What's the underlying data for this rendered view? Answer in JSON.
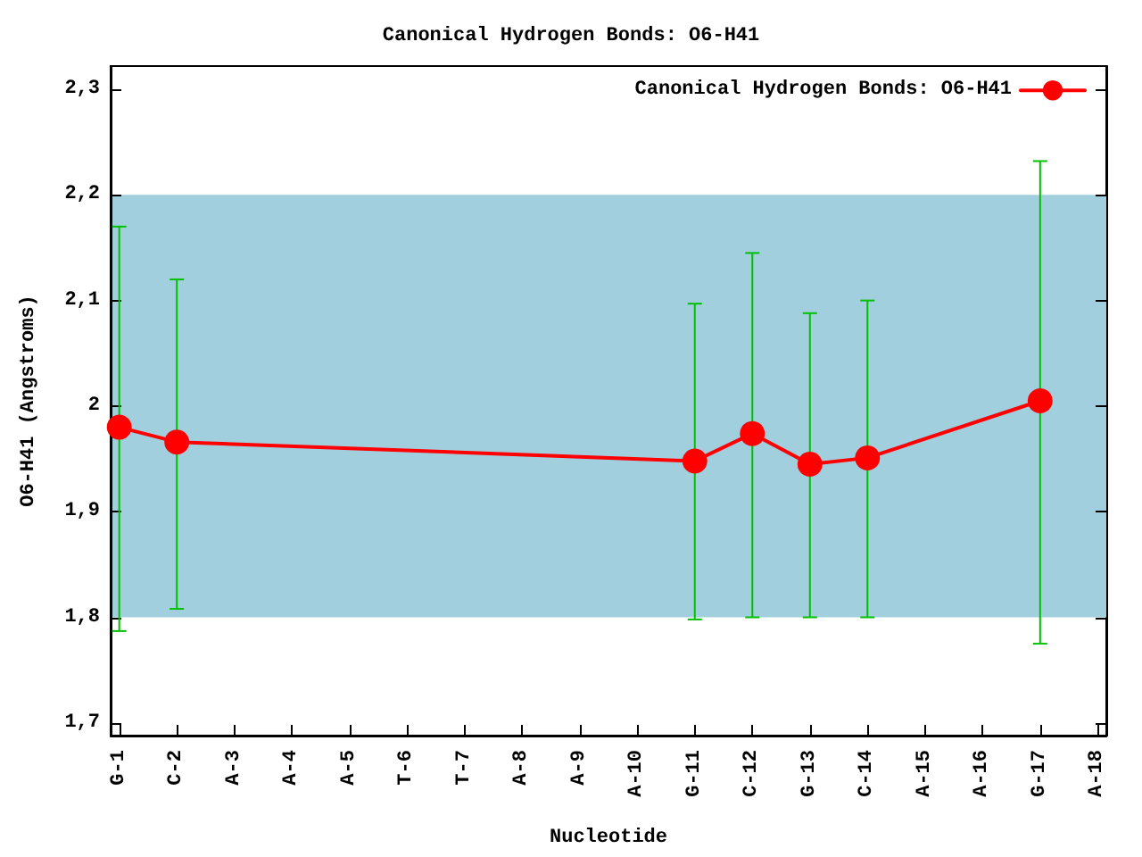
{
  "chart_data": {
    "type": "line",
    "title": "Canonical Hydrogen Bonds: O6-H41",
    "xlabel": "Nucleotide",
    "ylabel": "O6-H41 (Angstroms)",
    "categories": [
      "G-1",
      "C-2",
      "A-3",
      "A-4",
      "A-5",
      "T-6",
      "T-7",
      "A-8",
      "A-9",
      "A-10",
      "G-11",
      "C-12",
      "G-13",
      "C-14",
      "A-15",
      "A-16",
      "G-17",
      "A-18"
    ],
    "series": [
      {
        "name": "Canonical Hydrogen Bonds: O6-H41",
        "color": "#ff0000",
        "values": [
          1.98,
          1.966,
          null,
          null,
          null,
          null,
          null,
          null,
          null,
          null,
          1.948,
          1.974,
          1.945,
          1.951,
          null,
          null,
          2.005,
          null
        ],
        "errors": [
          [
            1.787,
            2.17
          ],
          [
            1.808,
            2.12
          ],
          null,
          null,
          null,
          null,
          null,
          null,
          null,
          null,
          [
            1.798,
            2.097
          ],
          [
            1.8,
            2.145
          ],
          [
            1.8,
            2.088
          ],
          [
            1.8,
            2.1
          ],
          null,
          null,
          [
            1.775,
            2.232
          ],
          null
        ]
      }
    ],
    "ylim": [
      1.688,
      2.322
    ],
    "yticks": [
      {
        "value": 1.7,
        "label": "1,7"
      },
      {
        "value": 1.8,
        "label": "1,8"
      },
      {
        "value": 1.9,
        "label": "1,9"
      },
      {
        "value": 2.0,
        "label": "2"
      },
      {
        "value": 2.1,
        "label": "2,1"
      },
      {
        "value": 2.2,
        "label": "2,2"
      },
      {
        "value": 2.3,
        "label": "2,3"
      }
    ],
    "bands": [
      {
        "axis": "y",
        "from": 1.8,
        "to": 2.2,
        "color": "#a2cfdd"
      }
    ],
    "grid": false,
    "legend": "top right",
    "marker": "circle",
    "line_style": "solid"
  }
}
